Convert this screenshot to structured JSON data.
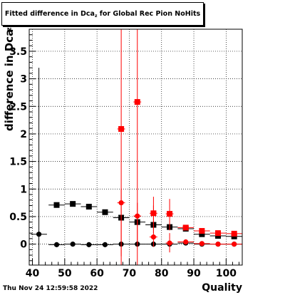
{
  "chart_data": {
    "type": "scatter",
    "title_main": "Fitted difference in Dca",
    "title_sub": "z",
    "title_tail": " for Global Rec Pion NoHits",
    "ylabel": "difference in Dca",
    "ylabel_sub": "z",
    "xlabel": "Quality",
    "xlim": [
      39,
      105
    ],
    "ylim": [
      -0.38,
      3.9
    ],
    "xticks": [
      40,
      50,
      60,
      70,
      80,
      90,
      100
    ],
    "yticks": [
      0,
      0.5,
      1,
      1.5,
      2,
      2.5,
      3,
      3.5
    ],
    "ytick_labels": [
      "0",
      "0.5",
      "1",
      "1.5",
      "2",
      "2.5",
      "3",
      "3.5"
    ],
    "grid": true,
    "series": [
      {
        "color": "#000000",
        "marker": "square",
        "points": [
          {
            "x": 47.5,
            "y": 0.71,
            "xe": 2.5
          },
          {
            "x": 52.5,
            "y": 0.73,
            "xe": 2.5
          },
          {
            "x": 57.5,
            "y": 0.68,
            "xe": 2.5
          },
          {
            "x": 62.5,
            "y": 0.58,
            "xe": 2.5
          },
          {
            "x": 67.5,
            "y": 0.48,
            "xe": 2.5
          },
          {
            "x": 72.5,
            "y": 0.4,
            "xe": 2.5
          },
          {
            "x": 77.5,
            "y": 0.35,
            "xe": 2.5
          },
          {
            "x": 82.5,
            "y": 0.31,
            "xe": 2.5
          },
          {
            "x": 87.5,
            "y": 0.28,
            "xe": 2.5
          },
          {
            "x": 92.5,
            "y": 0.18,
            "xe": 2.5
          },
          {
            "x": 97.5,
            "y": 0.15,
            "xe": 2.5
          },
          {
            "x": 102.5,
            "y": 0.14,
            "xe": 2.5
          }
        ]
      },
      {
        "color": "#000000",
        "marker": "circle",
        "points": [
          {
            "x": 42.0,
            "y": 0.18,
            "xe": 2.5,
            "ylo": -0.35,
            "yhi": 3.2
          },
          {
            "x": 47.5,
            "y": -0.01,
            "xe": 2.5
          },
          {
            "x": 52.5,
            "y": 0.0,
            "xe": 2.5
          },
          {
            "x": 57.5,
            "y": -0.01,
            "xe": 2.5
          },
          {
            "x": 62.5,
            "y": -0.01,
            "xe": 2.5
          },
          {
            "x": 67.5,
            "y": 0.0,
            "xe": 2.5
          },
          {
            "x": 72.5,
            "y": 0.0,
            "xe": 2.5
          },
          {
            "x": 77.5,
            "y": 0.0,
            "xe": 2.5
          },
          {
            "x": 82.5,
            "y": 0.0,
            "xe": 2.5
          },
          {
            "x": 87.5,
            "y": 0.02,
            "xe": 2.5
          },
          {
            "x": 92.5,
            "y": 0.0,
            "xe": 2.5
          },
          {
            "x": 97.5,
            "y": 0.0,
            "xe": 2.5
          },
          {
            "x": 102.5,
            "y": 0.0,
            "xe": 2.5
          }
        ]
      },
      {
        "color": "#ff0000",
        "marker": "square",
        "points": [
          {
            "x": 67.5,
            "y": 2.09,
            "xe": 1.2,
            "ylo": -0.38,
            "yhi": 3.9
          },
          {
            "x": 72.5,
            "y": 2.58,
            "xe": 1.2,
            "ylo": -0.38,
            "yhi": 3.9
          },
          {
            "x": 77.5,
            "y": 0.56,
            "xe": 1.2,
            "ylo": 0.2,
            "yhi": 0.86
          },
          {
            "x": 82.5,
            "y": 0.55,
            "xe": 1.2,
            "ylo": 0.25,
            "yhi": 0.82
          },
          {
            "x": 87.5,
            "y": 0.3,
            "xe": 2.5
          },
          {
            "x": 92.5,
            "y": 0.24,
            "xe": 2.5
          },
          {
            "x": 97.5,
            "y": 0.2,
            "xe": 2.5
          },
          {
            "x": 102.5,
            "y": 0.19,
            "xe": 2.5
          }
        ]
      },
      {
        "color": "#ff0000",
        "marker": "circle",
        "points": [
          {
            "x": 67.5,
            "y": 0.75,
            "xe": 1.2,
            "ylo": -0.22,
            "yhi": 1.0
          },
          {
            "x": 72.5,
            "y": 0.51,
            "xe": 1.2,
            "ylo": 0.0,
            "yhi": 0.75
          },
          {
            "x": 77.5,
            "y": 0.13,
            "xe": 1.2,
            "ylo": -0.05,
            "yhi": 0.7
          },
          {
            "x": 82.5,
            "y": 0.02,
            "xe": 1.2,
            "ylo": -0.15,
            "yhi": 0.2
          },
          {
            "x": 87.5,
            "y": 0.04,
            "xe": 2.5
          },
          {
            "x": 92.5,
            "y": 0.01,
            "xe": 2.5
          },
          {
            "x": 97.5,
            "y": 0.0,
            "xe": 2.5
          },
          {
            "x": 102.5,
            "y": 0.0,
            "xe": 2.5
          }
        ]
      }
    ]
  },
  "footer": {
    "timestamp": "Thu Nov 24 12:59:58 2022"
  }
}
